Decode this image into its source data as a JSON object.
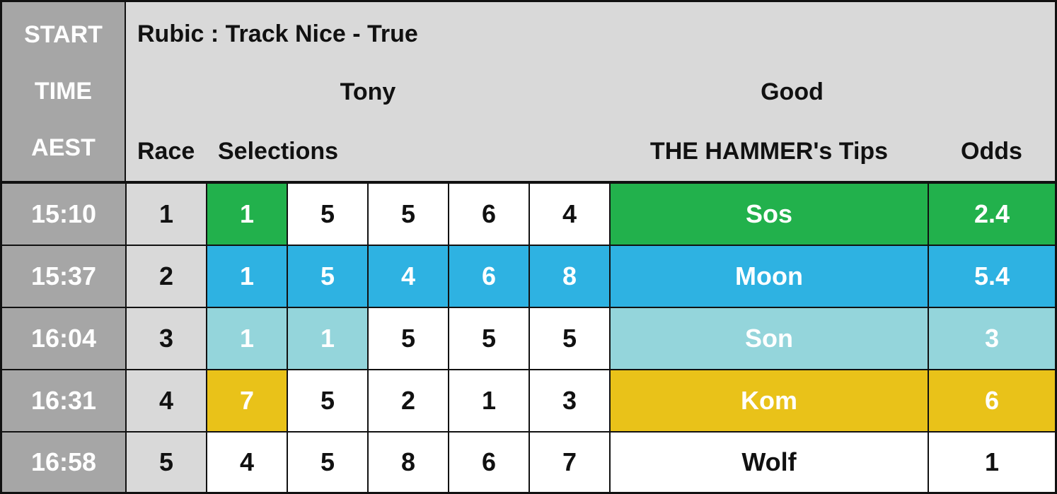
{
  "header": {
    "time_label_lines": [
      "START",
      "TIME",
      "AEST"
    ],
    "title": "Rubic : Track Nice - True",
    "subtitle_left": "Tony",
    "subtitle_right": "Good",
    "col_race": "Race",
    "col_selections": "Selections",
    "col_tips": "THE HAMMER's Tips",
    "col_odds": "Odds"
  },
  "colors": {
    "green": "#22b14c",
    "blue": "#2eb2e2",
    "light_teal": "#94d5db",
    "gold": "#e9c219",
    "white": "#ffffff",
    "time_gray": "#a6a6a6",
    "header_gray": "#d9d9d9"
  },
  "rows": [
    {
      "time": "15:10",
      "race": "1",
      "selections": [
        "1",
        "5",
        "5",
        "6",
        "4"
      ],
      "tip": "Sos",
      "odds": "2.4",
      "highlight": "green",
      "highlight_count": 1
    },
    {
      "time": "15:37",
      "race": "2",
      "selections": [
        "1",
        "5",
        "4",
        "6",
        "8"
      ],
      "tip": "Moon",
      "odds": "5.4",
      "highlight": "blue",
      "highlight_count": 5
    },
    {
      "time": "16:04",
      "race": "3",
      "selections": [
        "1",
        "1",
        "5",
        "5",
        "5"
      ],
      "tip": "Son",
      "odds": "3",
      "highlight": "light_teal",
      "highlight_count": 2
    },
    {
      "time": "16:31",
      "race": "4",
      "selections": [
        "7",
        "5",
        "2",
        "1",
        "3"
      ],
      "tip": "Kom",
      "odds": "6",
      "highlight": "gold",
      "highlight_count": 1
    },
    {
      "time": "16:58",
      "race": "5",
      "selections": [
        "4",
        "5",
        "8",
        "6",
        "7"
      ],
      "tip": "Wolf",
      "odds": "1",
      "highlight": "white",
      "highlight_count": 0
    }
  ]
}
